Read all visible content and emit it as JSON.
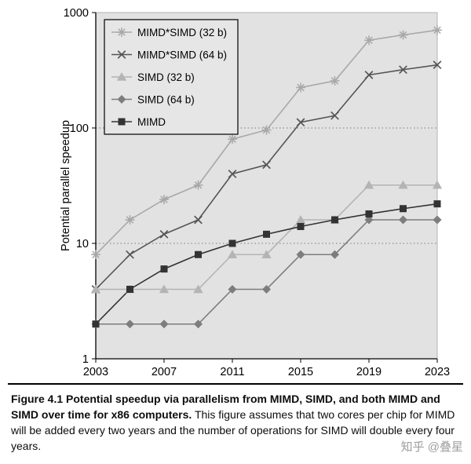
{
  "chart_data": {
    "type": "line",
    "title": "",
    "xlabel": "",
    "ylabel": "Potential parallel speedup",
    "y_scale": "log",
    "ylim": [
      1,
      1000
    ],
    "y_ticks": [
      1,
      10,
      100,
      1000
    ],
    "x": [
      2003,
      2005,
      2007,
      2009,
      2011,
      2013,
      2015,
      2017,
      2019,
      2021,
      2023
    ],
    "x_ticks": [
      2003,
      2007,
      2011,
      2015,
      2019,
      2023
    ],
    "grid": "horizontal-dotted",
    "legend_position": "top-left",
    "plot_bg": "#e2e2e2",
    "series": [
      {
        "name": "MIMD*SIMD (32 b)",
        "marker": "asterisk",
        "color": "#a8a8a8",
        "values": [
          8,
          16,
          24,
          32,
          80,
          96,
          224,
          256,
          576,
          640,
          704
        ]
      },
      {
        "name": "MIMD*SIMD (64 b)",
        "marker": "x",
        "color": "#555555",
        "values": [
          4,
          8,
          12,
          16,
          40,
          48,
          112,
          128,
          288,
          320,
          352
        ]
      },
      {
        "name": "SIMD (32 b)",
        "marker": "triangle",
        "color": "#b4b4b4",
        "values": [
          4,
          4,
          4,
          4,
          8,
          8,
          16,
          16,
          32,
          32,
          32
        ]
      },
      {
        "name": "SIMD (64 b)",
        "marker": "diamond",
        "color": "#7d7d7d",
        "values": [
          2,
          2,
          2,
          2,
          4,
          4,
          8,
          8,
          16,
          16,
          16
        ]
      },
      {
        "name": "MIMD",
        "marker": "square",
        "color": "#333333",
        "values": [
          2,
          4,
          6,
          8,
          10,
          12,
          14,
          16,
          18,
          20,
          22
        ]
      }
    ]
  },
  "caption": {
    "label": "Figure 4.1",
    "bold": "Potential speedup via parallelism from MIMD, SIMD, and both MIMD and SIMD over time for x86 computers.",
    "text": "This figure assumes that two cores per chip for MIMD will be added every two years and the number of operations for SIMD will double every four years."
  },
  "watermark": "知乎 @叠星"
}
